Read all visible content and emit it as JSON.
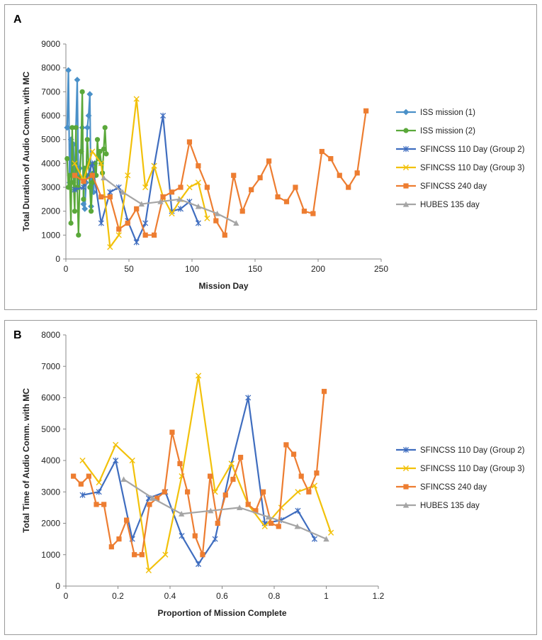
{
  "colors": {
    "iss1": "#4a90c8",
    "iss2": "#5aa83a",
    "sfg2": "#3f6dbf",
    "sfg3": "#f2c10a",
    "sf240": "#ed7d31",
    "hubes": "#a5a5a5"
  },
  "chart_data": [
    {
      "id": "A",
      "label": "A",
      "type": "line",
      "xlabel": "Mission Day",
      "ylabel": "Total Duration of Audio Comm. with MC",
      "xlim": [
        0,
        250
      ],
      "ylim": [
        0,
        9000
      ],
      "xticks": [
        0,
        50,
        100,
        150,
        200,
        250
      ],
      "yticks": [
        0,
        1000,
        2000,
        3000,
        4000,
        5000,
        6000,
        7000,
        8000,
        9000
      ],
      "series": [
        {
          "name": "ISS mission (1)",
          "color": "iss1",
          "marker": "diamond",
          "x": [
            1,
            2,
            3,
            4,
            5,
            6,
            7,
            8,
            9,
            10,
            11,
            12,
            13,
            14,
            15,
            16,
            17,
            18,
            19,
            20,
            21,
            22,
            23
          ],
          "y": [
            5500,
            7900,
            3200,
            5000,
            3600,
            4800,
            2900,
            5500,
            7500,
            3000,
            3800,
            4500,
            5500,
            2300,
            2100,
            3200,
            5500,
            6000,
            6900,
            2200,
            3500,
            2800,
            4000
          ]
        },
        {
          "name": "ISS mission (2)",
          "color": "iss2",
          "marker": "circle",
          "x": [
            1,
            2,
            3,
            4,
            5,
            6,
            7,
            8,
            9,
            10,
            11,
            12,
            13,
            14,
            15,
            16,
            17,
            18,
            19,
            20,
            21,
            22,
            23,
            24,
            25,
            26,
            27,
            28,
            29,
            30,
            31,
            32
          ],
          "y": [
            4200,
            3000,
            3500,
            1500,
            5500,
            3200,
            2000,
            5500,
            3000,
            1000,
            3400,
            4500,
            7000,
            2500,
            3800,
            3500,
            5000,
            4000,
            3000,
            2000,
            3200,
            3600,
            4000,
            3500,
            5000,
            4200,
            4500,
            4000,
            3600,
            4600,
            5500,
            4400
          ]
        },
        {
          "name": "SFINCSS 110 Day (Group 2)",
          "color": "sfg2",
          "marker": "star",
          "x": [
            7,
            14,
            21,
            28,
            35,
            42,
            49,
            56,
            63,
            70,
            77,
            84,
            91,
            98,
            105
          ],
          "y": [
            2900,
            3000,
            4000,
            1500,
            2800,
            3000,
            1600,
            700,
            1500,
            3900,
            6000,
            2000,
            2100,
            2400,
            1500
          ]
        },
        {
          "name": "SFINCSS 110 Day (Group 3)",
          "color": "sfg3",
          "marker": "x",
          "x": [
            7,
            14,
            21,
            28,
            35,
            42,
            49,
            56,
            63,
            70,
            77,
            84,
            91,
            98,
            105,
            112
          ],
          "y": [
            4000,
            3300,
            4500,
            4000,
            500,
            1000,
            3500,
            6700,
            3000,
            3900,
            2600,
            1900,
            2500,
            3000,
            3200,
            1700
          ]
        },
        {
          "name": "SFINCSS 240 day",
          "color": "sf240",
          "marker": "square",
          "x": [
            7,
            14,
            21,
            28,
            35,
            42,
            49,
            56,
            63,
            70,
            77,
            84,
            91,
            98,
            105,
            112,
            119,
            126,
            133,
            140,
            147,
            154,
            161,
            168,
            175,
            182,
            189,
            196,
            203,
            210,
            217,
            224,
            231,
            238
          ],
          "y": [
            3500,
            3250,
            3500,
            2600,
            2600,
            1250,
            1500,
            2100,
            1000,
            1000,
            2600,
            2800,
            3000,
            4900,
            3900,
            3000,
            1600,
            1000,
            3500,
            2000,
            2900,
            3400,
            4100,
            2600,
            2400,
            3000,
            2000,
            1900,
            4500,
            4200,
            3500,
            3000,
            3600,
            6200
          ]
        },
        {
          "name": "HUBES 135 day",
          "color": "hubes",
          "marker": "triangle",
          "x": [
            30,
            45,
            60,
            75,
            90,
            105,
            120,
            135
          ],
          "y": [
            3400,
            2800,
            2300,
            2400,
            2500,
            2200,
            1900,
            1500
          ]
        }
      ]
    },
    {
      "id": "B",
      "label": "B",
      "type": "line",
      "xlabel": "Proportion of Mission Complete",
      "ylabel": "Total Time of Audio Comm. with MC",
      "xlim": [
        0,
        1.2
      ],
      "ylim": [
        0,
        8000
      ],
      "xticks": [
        0,
        0.2,
        0.4,
        0.6,
        0.8,
        1,
        1.2
      ],
      "yticks": [
        0,
        1000,
        2000,
        3000,
        4000,
        5000,
        6000,
        7000,
        8000
      ],
      "series": [
        {
          "name": "SFINCSS 110 Day (Group 2)",
          "color": "sfg2",
          "marker": "star",
          "x": [
            0.064,
            0.127,
            0.191,
            0.255,
            0.318,
            0.382,
            0.445,
            0.509,
            0.573,
            0.636,
            0.7,
            0.764,
            0.827,
            0.891,
            0.955
          ],
          "y": [
            2900,
            3000,
            4000,
            1500,
            2800,
            3000,
            1600,
            700,
            1500,
            3900,
            6000,
            2000,
            2100,
            2400,
            1500
          ]
        },
        {
          "name": "SFINCSS 110 Day (Group 3)",
          "color": "sfg3",
          "marker": "x",
          "x": [
            0.064,
            0.127,
            0.191,
            0.255,
            0.318,
            0.382,
            0.445,
            0.509,
            0.573,
            0.636,
            0.7,
            0.764,
            0.827,
            0.891,
            0.955,
            1.018
          ],
          "y": [
            4000,
            3300,
            4500,
            4000,
            500,
            1000,
            3500,
            6700,
            3000,
            3900,
            2600,
            1900,
            2500,
            3000,
            3200,
            1700
          ]
        },
        {
          "name": "SFINCSS 240 day",
          "color": "sf240",
          "marker": "square",
          "x": [
            0.029,
            0.058,
            0.088,
            0.117,
            0.146,
            0.175,
            0.204,
            0.233,
            0.263,
            0.292,
            0.321,
            0.35,
            0.379,
            0.408,
            0.438,
            0.467,
            0.496,
            0.525,
            0.554,
            0.583,
            0.613,
            0.642,
            0.671,
            0.7,
            0.729,
            0.758,
            0.788,
            0.817,
            0.846,
            0.875,
            0.904,
            0.933,
            0.963,
            0.992
          ],
          "y": [
            3500,
            3250,
            3500,
            2600,
            2600,
            1250,
            1500,
            2100,
            1000,
            1000,
            2600,
            2800,
            3000,
            4900,
            3900,
            3000,
            1600,
            1000,
            3500,
            2000,
            2900,
            3400,
            4100,
            2600,
            2400,
            3000,
            2000,
            1900,
            4500,
            4200,
            3500,
            3000,
            3600,
            6200
          ]
        },
        {
          "name": "HUBES 135 day",
          "color": "hubes",
          "marker": "triangle",
          "x": [
            0.222,
            0.333,
            0.444,
            0.556,
            0.667,
            0.778,
            0.889,
            1.0
          ],
          "y": [
            3400,
            2800,
            2300,
            2400,
            2500,
            2200,
            1900,
            1500
          ]
        }
      ]
    }
  ]
}
